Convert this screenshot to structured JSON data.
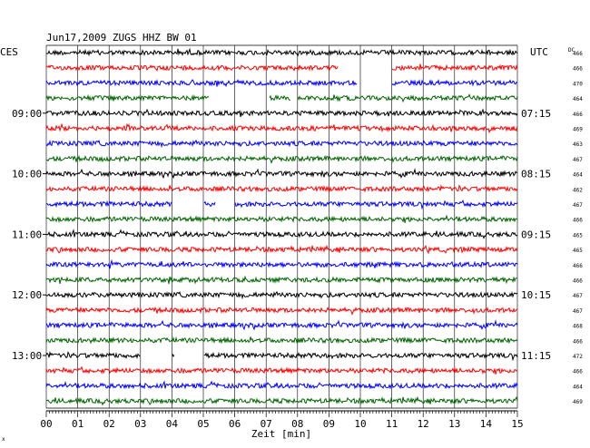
{
  "chart_data": {
    "type": "line",
    "title": "Jun17,2009   ZUGS HHZ BW 01",
    "xlabel": "Zeit [min]",
    "x_ticks": [
      "00",
      "01",
      "02",
      "03",
      "04",
      "05",
      "06",
      "07",
      "08",
      "09",
      "10",
      "11",
      "12",
      "13",
      "14",
      "15"
    ],
    "xlim": [
      0,
      15
    ],
    "left_axis_title": "CES",
    "right_axis_title": "UTC",
    "dc_header": "DC",
    "left_hour_labels": [
      "09:00",
      "10:00",
      "11:00",
      "12:00",
      "13:00"
    ],
    "right_time_labels": [
      "07:15",
      "08:15",
      "09:15",
      "10:15",
      "11:15"
    ],
    "hour_label_rows": [
      4,
      8,
      12,
      16,
      20
    ],
    "dc_values": [
      "466",
      "466",
      "470",
      "464",
      "466",
      "469",
      "463",
      "467",
      "464",
      "462",
      "467",
      "466",
      "465",
      "465",
      "466",
      "466",
      "467",
      "467",
      "468",
      "466",
      "472",
      "466",
      "464",
      "469"
    ],
    "trace_colors": [
      "#000000",
      "#ff0000",
      "#0000ff",
      "#006400"
    ],
    "grid": true,
    "row_count": 24,
    "gaps": [
      {
        "row": 1,
        "from": 9.3,
        "to": 11.0
      },
      {
        "row": 2,
        "from": 9.9,
        "to": 11.0
      },
      {
        "row": 3,
        "from": 5.2,
        "to": 7.1
      },
      {
        "row": 3,
        "from": 7.8,
        "to": 8.0
      },
      {
        "row": 10,
        "from": 4.0,
        "to": 5.0
      },
      {
        "row": 10,
        "from": 5.4,
        "to": 6.0
      },
      {
        "row": 20,
        "from": 3.0,
        "to": 4.0
      },
      {
        "row": 20,
        "from": 4.1,
        "to": 5.0
      }
    ]
  },
  "footer_mark": "x"
}
